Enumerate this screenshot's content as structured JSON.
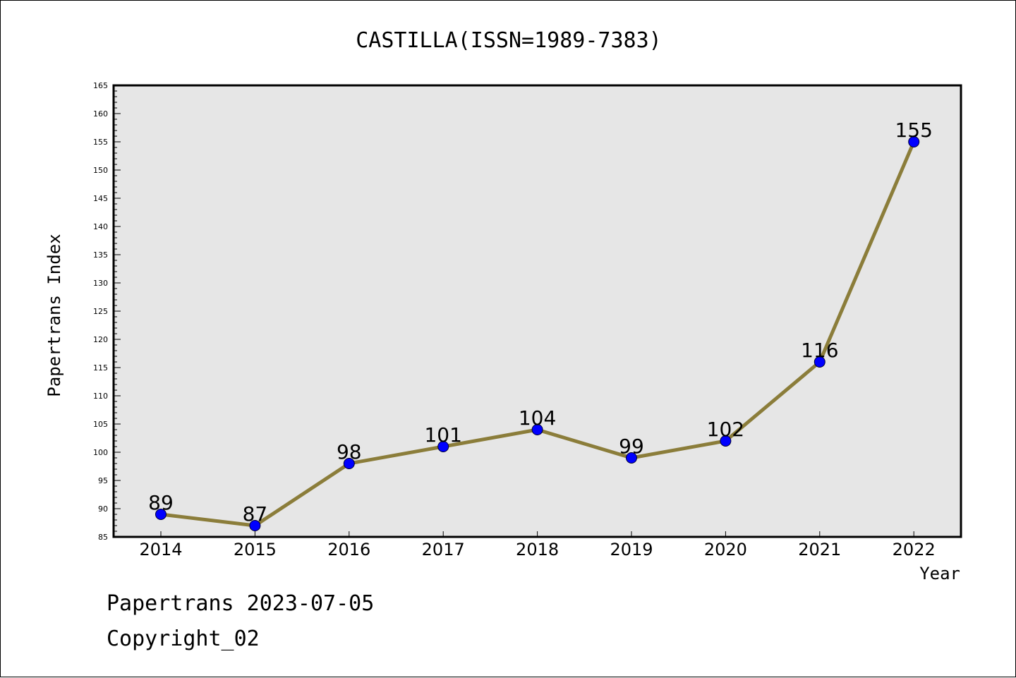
{
  "chart_data": {
    "type": "line",
    "title": "CASTILLA(ISSN=1989-7383)",
    "xlabel": "Year",
    "ylabel": "Papertrans Index",
    "x": [
      "2014",
      "2015",
      "2016",
      "2017",
      "2018",
      "2019",
      "2020",
      "2021",
      "2022"
    ],
    "series": [
      {
        "values": [
          89,
          87,
          98,
          101,
          104,
          99,
          102,
          116,
          155
        ]
      }
    ],
    "ylim": [
      85,
      165
    ],
    "y_major_step": 5,
    "y_minor_step": 1,
    "grid": false,
    "data_labels": true,
    "colors": {
      "line": "#8B7D3A",
      "marker": "#0000FF",
      "plot_background": "#E6E6E6"
    }
  },
  "footer": {
    "line1": "Papertrans 2023-07-05",
    "line2": "Copyright_02"
  }
}
